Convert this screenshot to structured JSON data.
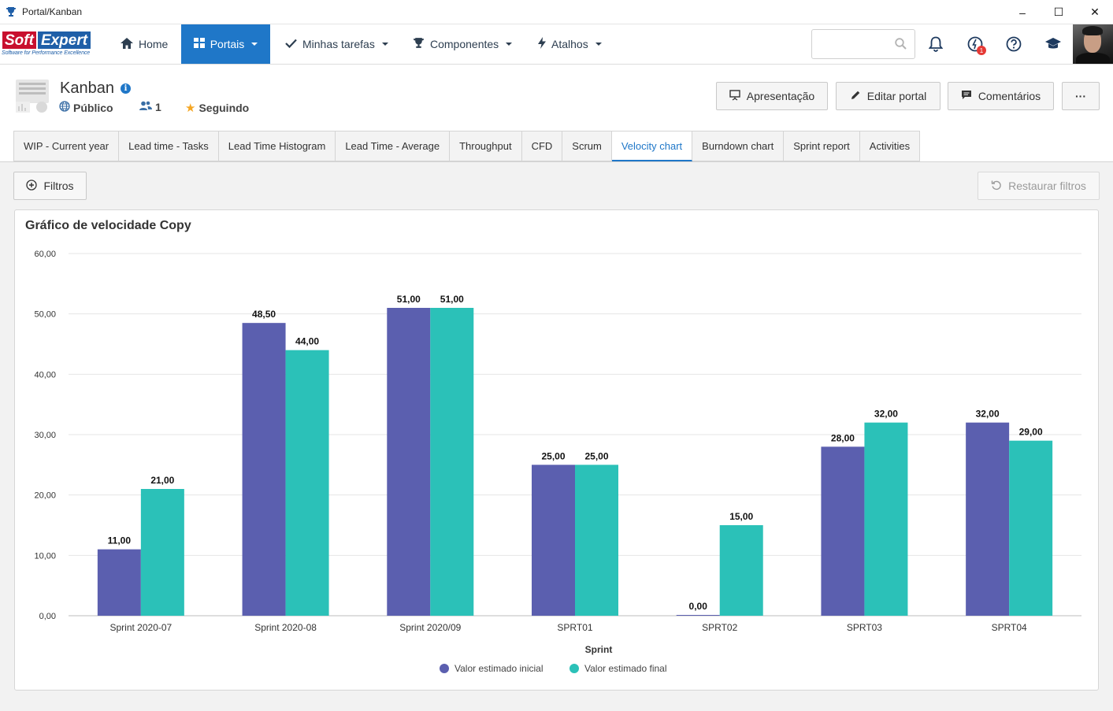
{
  "window": {
    "title": "Portal/Kanban",
    "controls": [
      "–",
      "☐",
      "✕"
    ]
  },
  "logo": {
    "part1": "Soft",
    "part2": "Expert",
    "tagline": "Software for Performance Excellence"
  },
  "nav": {
    "home": "Home",
    "portais": "Portais",
    "minhas_tarefas": "Minhas tarefas",
    "componentes": "Componentes",
    "atalhos": "Atalhos",
    "notifications_badge": "1"
  },
  "header": {
    "title": "Kanban",
    "visibility": "Público",
    "members": "1",
    "following": "Seguindo",
    "buttons": {
      "apresentacao": "Apresentação",
      "editar": "Editar portal",
      "comentarios": "Comentários",
      "more": "···"
    }
  },
  "tabs": [
    "WIP - Current year",
    "Lead time - Tasks",
    "Lead Time Histogram",
    "Lead Time - Average",
    "Throughput",
    "CFD",
    "Scrum",
    "Velocity chart",
    "Burndown chart",
    "Sprint report",
    "Activities"
  ],
  "active_tab": "Velocity chart",
  "filters": {
    "filtros": "Filtros",
    "restaurar": "Restaurar filtros"
  },
  "colors": {
    "accent": "#1f77c8",
    "series1": "#5b5faf",
    "series2": "#2bc1b8"
  },
  "chart_data": {
    "type": "bar",
    "title": "Gráfico de velocidade Copy",
    "xlabel": "Sprint",
    "ylabel": "",
    "ylim": [
      0,
      60
    ],
    "yticks": [
      "60,00",
      "50,00",
      "40,00",
      "30,00",
      "20,00",
      "10,00",
      "0,00"
    ],
    "categories": [
      "Sprint 2020-07",
      "Sprint 2020-08",
      "Sprint 2020/09",
      "SPRT01",
      "SPRT02",
      "SPRT03",
      "SPRT04"
    ],
    "series": [
      {
        "name": "Valor estimado inicial",
        "values": [
          11,
          48.5,
          51,
          25,
          0,
          28,
          32
        ],
        "labels": [
          "11,00",
          "48,50",
          "51,00",
          "25,00",
          "0,00",
          "28,00",
          "32,00"
        ]
      },
      {
        "name": "Valor estimado final",
        "values": [
          21,
          44,
          51,
          25,
          15,
          32,
          29
        ],
        "labels": [
          "21,00",
          "44,00",
          "51,00",
          "25,00",
          "15,00",
          "32,00",
          "29,00"
        ]
      }
    ],
    "grid": true,
    "legend": "bottom-center"
  }
}
